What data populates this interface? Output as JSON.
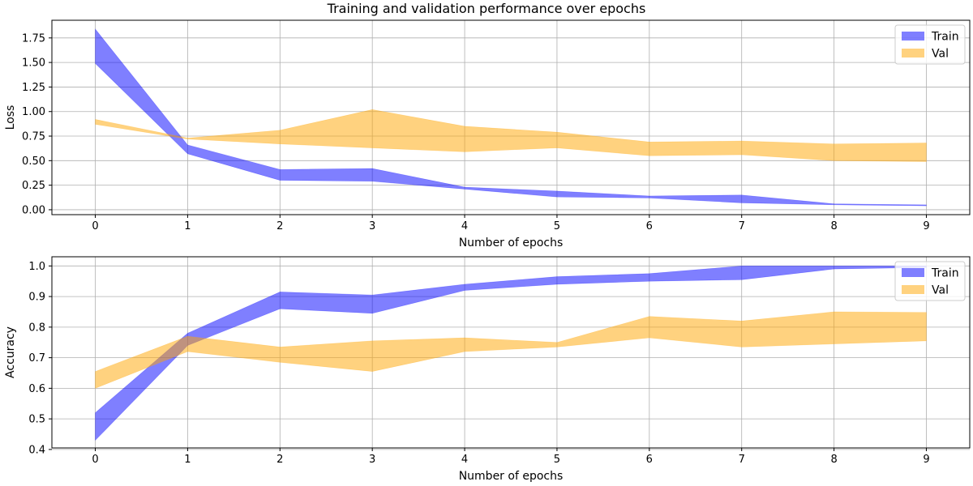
{
  "figure": {
    "title": "Training and validation performance over epochs"
  },
  "chart_data": [
    {
      "type": "area",
      "xlabel": "Number of epochs",
      "ylabel": "Loss",
      "x": [
        0,
        1,
        2,
        3,
        4,
        5,
        6,
        7,
        8,
        9
      ],
      "xlim": [
        -0.47,
        9.47
      ],
      "ylim": [
        -0.05,
        1.93
      ],
      "xticks": [
        0,
        1,
        2,
        3,
        4,
        5,
        6,
        7,
        8,
        9
      ],
      "yticks": [
        0.0,
        0.25,
        0.5,
        0.75,
        1.0,
        1.25,
        1.5,
        1.75
      ],
      "ytick_labels": [
        "0.00",
        "0.25",
        "0.50",
        "0.75",
        "1.00",
        "1.25",
        "1.50",
        "1.75"
      ],
      "grid": true,
      "legend_position": "top-right",
      "series": [
        {
          "name": "Train",
          "color": "#0000ff",
          "alpha": 0.5,
          "lower": [
            1.49,
            0.57,
            0.3,
            0.29,
            0.21,
            0.13,
            0.12,
            0.07,
            0.05,
            0.04
          ],
          "upper": [
            1.84,
            0.66,
            0.41,
            0.42,
            0.23,
            0.19,
            0.14,
            0.15,
            0.06,
            0.05
          ]
        },
        {
          "name": "Val",
          "color": "#ffa500",
          "alpha": 0.5,
          "lower": [
            0.87,
            0.72,
            0.67,
            0.63,
            0.59,
            0.63,
            0.55,
            0.56,
            0.5,
            0.49
          ],
          "upper": [
            0.92,
            0.73,
            0.81,
            1.02,
            0.85,
            0.79,
            0.69,
            0.7,
            0.67,
            0.68
          ]
        }
      ]
    },
    {
      "type": "area",
      "xlabel": "Number of epochs",
      "ylabel": "Accuracy",
      "x": [
        0,
        1,
        2,
        3,
        4,
        5,
        6,
        7,
        8,
        9
      ],
      "xlim": [
        -0.47,
        9.47
      ],
      "ylim": [
        0.405,
        1.03
      ],
      "xticks": [
        0,
        1,
        2,
        3,
        4,
        5,
        6,
        7,
        8,
        9
      ],
      "yticks": [
        0.4,
        0.5,
        0.6,
        0.7,
        0.8,
        0.9,
        1.0
      ],
      "ytick_labels": [
        "0.4",
        "0.5",
        "0.6",
        "0.7",
        "0.8",
        "0.9",
        "1.0"
      ],
      "grid": true,
      "legend_position": "top-right",
      "series": [
        {
          "name": "Train",
          "color": "#0000ff",
          "alpha": 0.5,
          "lower": [
            0.43,
            0.74,
            0.86,
            0.845,
            0.92,
            0.94,
            0.95,
            0.955,
            0.99,
            0.995
          ],
          "upper": [
            0.52,
            0.78,
            0.915,
            0.905,
            0.94,
            0.965,
            0.975,
            1.0,
            1.0,
            1.0
          ]
        },
        {
          "name": "Val",
          "color": "#ffa500",
          "alpha": 0.5,
          "lower": [
            0.6,
            0.72,
            0.685,
            0.655,
            0.72,
            0.735,
            0.765,
            0.735,
            0.745,
            0.755
          ],
          "upper": [
            0.655,
            0.77,
            0.735,
            0.755,
            0.765,
            0.75,
            0.835,
            0.82,
            0.85,
            0.848
          ]
        }
      ]
    }
  ]
}
